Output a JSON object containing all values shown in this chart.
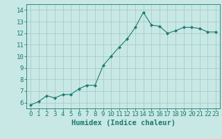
{
  "x": [
    0,
    1,
    2,
    3,
    4,
    5,
    6,
    7,
    8,
    9,
    10,
    11,
    12,
    13,
    14,
    15,
    16,
    17,
    18,
    19,
    20,
    21,
    22,
    23
  ],
  "y": [
    5.8,
    6.1,
    6.6,
    6.4,
    6.7,
    6.7,
    7.2,
    7.5,
    7.5,
    9.2,
    10.0,
    10.8,
    11.5,
    12.5,
    13.8,
    12.7,
    12.6,
    12.0,
    12.2,
    12.5,
    12.5,
    12.4,
    12.1,
    12.1
  ],
  "line_color": "#1a7a6e",
  "marker": "D",
  "marker_size": 2.0,
  "bg_color": "#c8e8e5",
  "grid_color": "#a0c8c5",
  "xlabel": "Humidex (Indice chaleur)",
  "xlim": [
    -0.5,
    23.5
  ],
  "ylim": [
    5.5,
    14.5
  ],
  "yticks": [
    6,
    7,
    8,
    9,
    10,
    11,
    12,
    13,
    14
  ],
  "xticks": [
    0,
    1,
    2,
    3,
    4,
    5,
    6,
    7,
    8,
    9,
    10,
    11,
    12,
    13,
    14,
    15,
    16,
    17,
    18,
    19,
    20,
    21,
    22,
    23
  ],
  "xtick_labels": [
    "0",
    "1",
    "2",
    "3",
    "4",
    "5",
    "6",
    "7",
    "8",
    "9",
    "10",
    "11",
    "12",
    "13",
    "14",
    "15",
    "16",
    "17",
    "18",
    "19",
    "20",
    "21",
    "22",
    "23"
  ],
  "tick_color": "#1a7a6e",
  "font_color": "#1a7a6e",
  "xlabel_fontsize": 7.5,
  "tick_fontsize": 6.5
}
